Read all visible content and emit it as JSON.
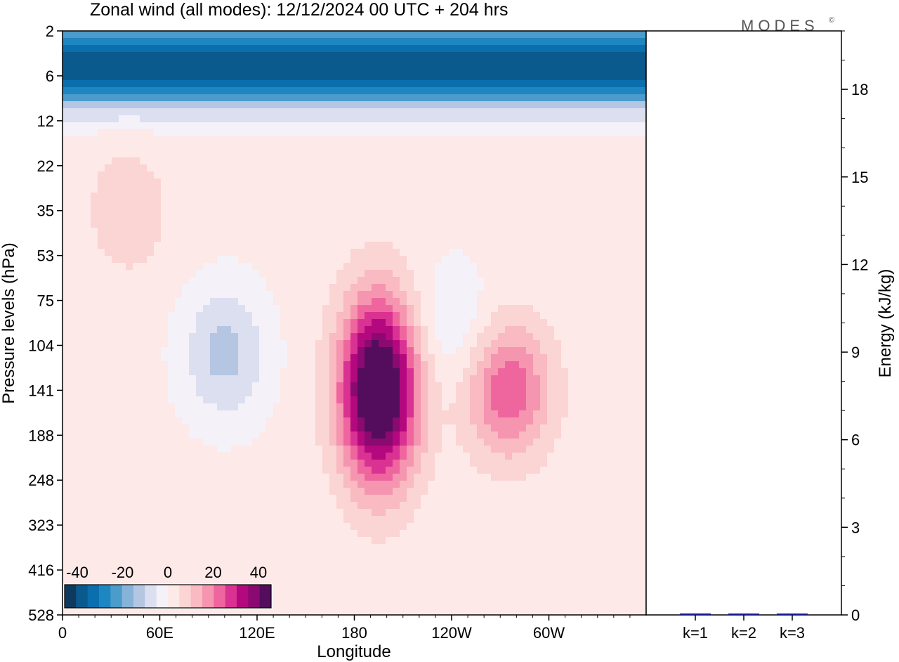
{
  "chart_data": [
    {
      "type": "heatmap",
      "title": "Zonal wind (all modes):  12/12/2024  00 UTC  + 204 hrs",
      "xlabel": "Longitude",
      "ylabel": "Pressure levels (hPa)",
      "x_ticks": [
        "0",
        "60E",
        "120E",
        "180",
        "120W",
        "60W"
      ],
      "y_ticks": [
        "2",
        "6",
        "12",
        "22",
        "35",
        "53",
        "75",
        "104",
        "141",
        "188",
        "248",
        "323",
        "416",
        "528"
      ],
      "colorbar": {
        "tick_labels": [
          "-40",
          "-20",
          "0",
          "20",
          "40"
        ],
        "range": [
          -40,
          40
        ],
        "colors": [
          "#0f3a5f",
          "#0a5a8e",
          "#0b6fae",
          "#1e86c0",
          "#4b9bcb",
          "#86b3d8",
          "#b5c6e2",
          "#dcdff0",
          "#f4f1f8",
          "#fde9e8",
          "#fbd4d4",
          "#f9bac1",
          "#f595b0",
          "#ef669f",
          "#d93292",
          "#b3087e",
          "#8a0a72",
          "#530d5c"
        ]
      },
      "fields": [
        {
          "lon": 150,
          "level": 6,
          "value": -35
        },
        {
          "lon": 300,
          "level": 6,
          "value": -35
        },
        {
          "lon": 195,
          "level": 141,
          "value": 45
        },
        {
          "lon": 275,
          "level": 141,
          "value": 20
        },
        {
          "lon": 100,
          "level": 110,
          "value": -12
        },
        {
          "lon": 40,
          "level": 35,
          "value": 6
        },
        {
          "lon": 240,
          "level": 90,
          "value": -6
        }
      ]
    },
    {
      "type": "bar",
      "ylabel": "Energy (kJ/kg)",
      "categories": [
        "k=1",
        "k=2",
        "k=3"
      ],
      "values": [
        0.05,
        0.03,
        0.02
      ],
      "ylim": [
        0,
        20
      ],
      "y_ticks": [
        "0",
        "3",
        "6",
        "9",
        "12",
        "15",
        "18"
      ],
      "bar_color": "#1a1a8c"
    }
  ],
  "logo": "MODES",
  "logo_mark": "©"
}
